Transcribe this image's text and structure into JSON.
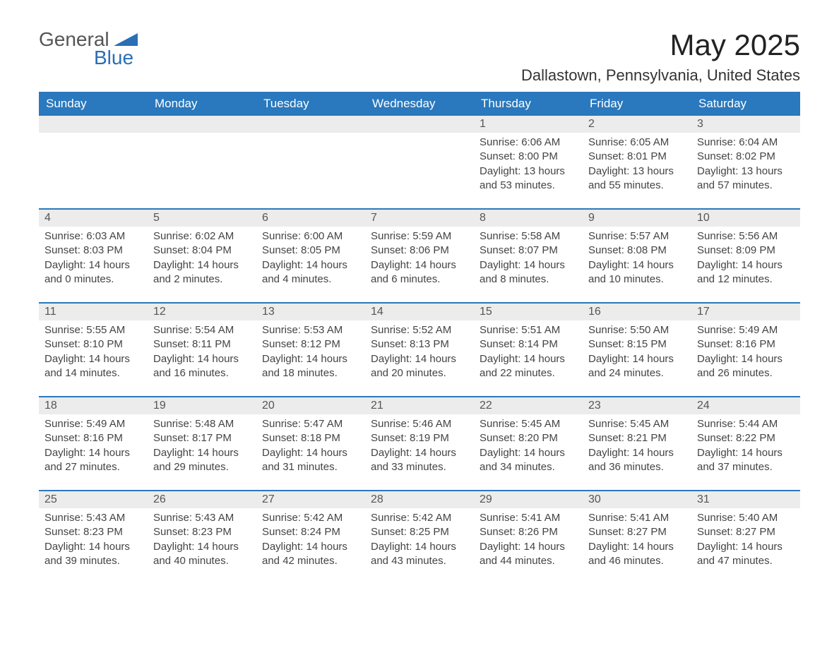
{
  "logo": {
    "text1": "General",
    "text2": "Blue"
  },
  "title": "May 2025",
  "location": "Dallastown, Pennsylvania, United States",
  "colors": {
    "header_bg": "#2a78bd",
    "header_text": "#ffffff",
    "daynum_bg": "#ececec",
    "row_border": "#2a78bd",
    "body_text": "#444444",
    "logo_accent": "#2a6fb5"
  },
  "weekdays": [
    "Sunday",
    "Monday",
    "Tuesday",
    "Wednesday",
    "Thursday",
    "Friday",
    "Saturday"
  ],
  "labels": {
    "sunrise": "Sunrise:",
    "sunset": "Sunset:",
    "daylight": "Daylight:"
  },
  "weeks": [
    [
      null,
      null,
      null,
      null,
      {
        "n": "1",
        "sunrise": "6:06 AM",
        "sunset": "8:00 PM",
        "dl": "13 hours and 53 minutes."
      },
      {
        "n": "2",
        "sunrise": "6:05 AM",
        "sunset": "8:01 PM",
        "dl": "13 hours and 55 minutes."
      },
      {
        "n": "3",
        "sunrise": "6:04 AM",
        "sunset": "8:02 PM",
        "dl": "13 hours and 57 minutes."
      }
    ],
    [
      {
        "n": "4",
        "sunrise": "6:03 AM",
        "sunset": "8:03 PM",
        "dl": "14 hours and 0 minutes."
      },
      {
        "n": "5",
        "sunrise": "6:02 AM",
        "sunset": "8:04 PM",
        "dl": "14 hours and 2 minutes."
      },
      {
        "n": "6",
        "sunrise": "6:00 AM",
        "sunset": "8:05 PM",
        "dl": "14 hours and 4 minutes."
      },
      {
        "n": "7",
        "sunrise": "5:59 AM",
        "sunset": "8:06 PM",
        "dl": "14 hours and 6 minutes."
      },
      {
        "n": "8",
        "sunrise": "5:58 AM",
        "sunset": "8:07 PM",
        "dl": "14 hours and 8 minutes."
      },
      {
        "n": "9",
        "sunrise": "5:57 AM",
        "sunset": "8:08 PM",
        "dl": "14 hours and 10 minutes."
      },
      {
        "n": "10",
        "sunrise": "5:56 AM",
        "sunset": "8:09 PM",
        "dl": "14 hours and 12 minutes."
      }
    ],
    [
      {
        "n": "11",
        "sunrise": "5:55 AM",
        "sunset": "8:10 PM",
        "dl": "14 hours and 14 minutes."
      },
      {
        "n": "12",
        "sunrise": "5:54 AM",
        "sunset": "8:11 PM",
        "dl": "14 hours and 16 minutes."
      },
      {
        "n": "13",
        "sunrise": "5:53 AM",
        "sunset": "8:12 PM",
        "dl": "14 hours and 18 minutes."
      },
      {
        "n": "14",
        "sunrise": "5:52 AM",
        "sunset": "8:13 PM",
        "dl": "14 hours and 20 minutes."
      },
      {
        "n": "15",
        "sunrise": "5:51 AM",
        "sunset": "8:14 PM",
        "dl": "14 hours and 22 minutes."
      },
      {
        "n": "16",
        "sunrise": "5:50 AM",
        "sunset": "8:15 PM",
        "dl": "14 hours and 24 minutes."
      },
      {
        "n": "17",
        "sunrise": "5:49 AM",
        "sunset": "8:16 PM",
        "dl": "14 hours and 26 minutes."
      }
    ],
    [
      {
        "n": "18",
        "sunrise": "5:49 AM",
        "sunset": "8:16 PM",
        "dl": "14 hours and 27 minutes."
      },
      {
        "n": "19",
        "sunrise": "5:48 AM",
        "sunset": "8:17 PM",
        "dl": "14 hours and 29 minutes."
      },
      {
        "n": "20",
        "sunrise": "5:47 AM",
        "sunset": "8:18 PM",
        "dl": "14 hours and 31 minutes."
      },
      {
        "n": "21",
        "sunrise": "5:46 AM",
        "sunset": "8:19 PM",
        "dl": "14 hours and 33 minutes."
      },
      {
        "n": "22",
        "sunrise": "5:45 AM",
        "sunset": "8:20 PM",
        "dl": "14 hours and 34 minutes."
      },
      {
        "n": "23",
        "sunrise": "5:45 AM",
        "sunset": "8:21 PM",
        "dl": "14 hours and 36 minutes."
      },
      {
        "n": "24",
        "sunrise": "5:44 AM",
        "sunset": "8:22 PM",
        "dl": "14 hours and 37 minutes."
      }
    ],
    [
      {
        "n": "25",
        "sunrise": "5:43 AM",
        "sunset": "8:23 PM",
        "dl": "14 hours and 39 minutes."
      },
      {
        "n": "26",
        "sunrise": "5:43 AM",
        "sunset": "8:23 PM",
        "dl": "14 hours and 40 minutes."
      },
      {
        "n": "27",
        "sunrise": "5:42 AM",
        "sunset": "8:24 PM",
        "dl": "14 hours and 42 minutes."
      },
      {
        "n": "28",
        "sunrise": "5:42 AM",
        "sunset": "8:25 PM",
        "dl": "14 hours and 43 minutes."
      },
      {
        "n": "29",
        "sunrise": "5:41 AM",
        "sunset": "8:26 PM",
        "dl": "14 hours and 44 minutes."
      },
      {
        "n": "30",
        "sunrise": "5:41 AM",
        "sunset": "8:27 PM",
        "dl": "14 hours and 46 minutes."
      },
      {
        "n": "31",
        "sunrise": "5:40 AM",
        "sunset": "8:27 PM",
        "dl": "14 hours and 47 minutes."
      }
    ]
  ]
}
